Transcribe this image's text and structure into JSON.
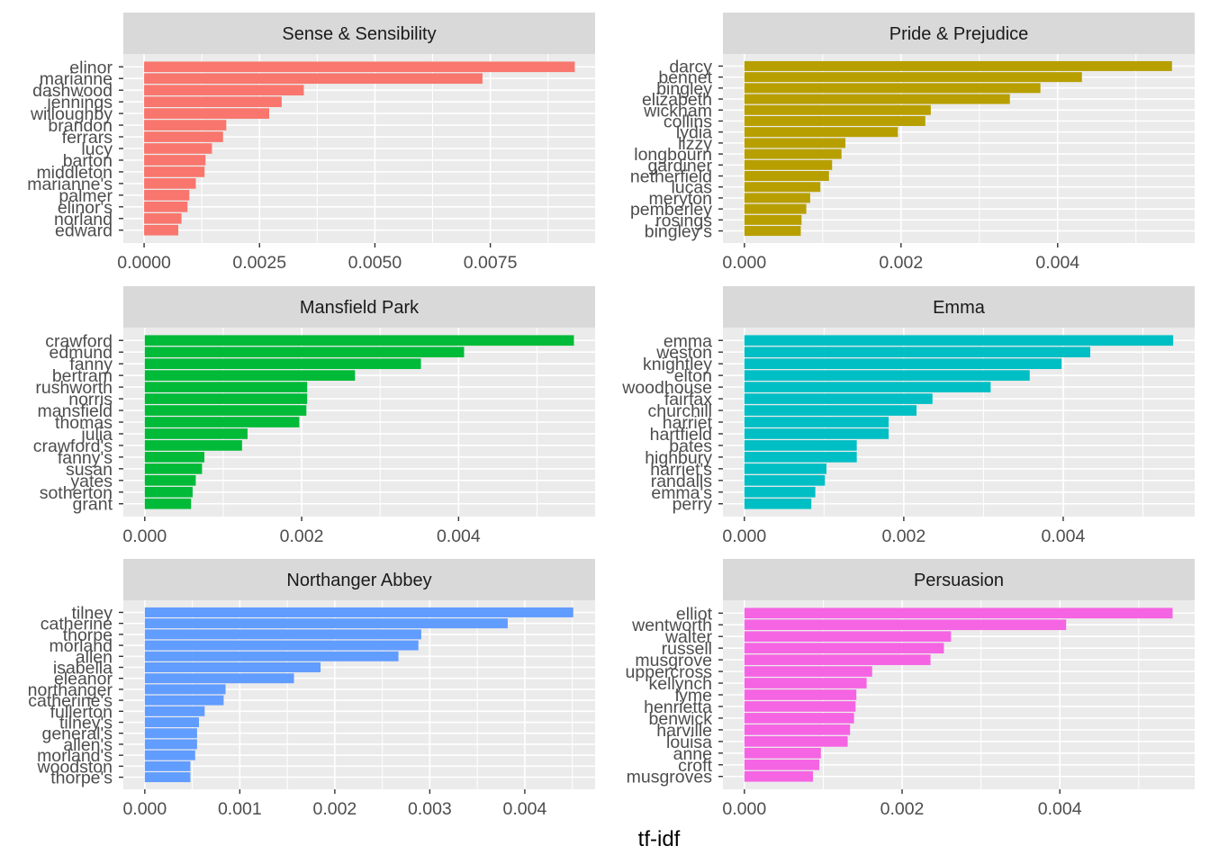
{
  "chart_data": {
    "type": "bar",
    "orientation": "horizontal",
    "layout": "facet grid 3 rows x 2 columns, free scales",
    "xlabel": "tf-idf",
    "ylabel": "",
    "grid": true,
    "legend": "none",
    "panels": [
      {
        "title": "Sense & Sensibility",
        "color": "#F8766D",
        "categories": [
          "elinor",
          "marianne",
          "dashwood",
          "jennings",
          "willoughby",
          "brandon",
          "ferrars",
          "lucy",
          "barton",
          "middleton",
          "marianne's",
          "palmer",
          "elinor's",
          "norland",
          "edward"
        ],
        "values": [
          0.00933,
          0.00733,
          0.00346,
          0.00298,
          0.00271,
          0.00178,
          0.00171,
          0.00147,
          0.00133,
          0.00131,
          0.00112,
          0.00098,
          0.00094,
          0.00081,
          0.00074
        ],
        "xlim": [
          -0.00045,
          0.00977
        ],
        "xticks": [
          0,
          0.0025,
          0.005,
          0.0075
        ],
        "xtick_labels": [
          "0.0000",
          "0.0025",
          "0.0050",
          "0.0075"
        ]
      },
      {
        "title": "Pride & Prejudice",
        "color": "#B79F00",
        "categories": [
          "darcy",
          "bennet",
          "bingley",
          "elizabeth",
          "wickham",
          "collins",
          "lydia",
          "lizzy",
          "longbourn",
          "gardiner",
          "netherfield",
          "lucas",
          "meryton",
          "pemberley",
          "rosings",
          "bingley's"
        ],
        "values": [
          0.00546,
          0.00431,
          0.00378,
          0.00339,
          0.00238,
          0.00231,
          0.00196,
          0.00129,
          0.00124,
          0.00112,
          0.00108,
          0.00097,
          0.00084,
          0.00079,
          0.00073,
          0.00072
        ],
        "xlim": [
          -0.000274,
          0.00575
        ],
        "xticks": [
          0,
          0.002,
          0.004
        ],
        "xtick_labels": [
          "0.000",
          "0.002",
          "0.004"
        ]
      },
      {
        "title": "Mansfield Park",
        "color": "#00BA38",
        "categories": [
          "crawford",
          "edmund",
          "fanny",
          "bertram",
          "rushworth",
          "norris",
          "mansfield",
          "thomas",
          "julia",
          "crawford's",
          "fanny's",
          "susan",
          "yates",
          "sotherton",
          "grant"
        ],
        "values": [
          0.00547,
          0.00407,
          0.00352,
          0.00268,
          0.00207,
          0.00207,
          0.00206,
          0.00197,
          0.00131,
          0.00124,
          0.00076,
          0.00073,
          0.00065,
          0.00061,
          0.00059
        ],
        "xlim": [
          -0.000273,
          0.00574
        ],
        "xticks": [
          0,
          0.002,
          0.004
        ],
        "xtick_labels": [
          "0.000",
          "0.002",
          "0.004"
        ]
      },
      {
        "title": "Emma",
        "color": "#00BFC4",
        "categories": [
          "emma",
          "weston",
          "knightley",
          "elton",
          "woodhouse",
          "fairfax",
          "churchill",
          "harriet",
          "hartfield",
          "bates",
          "highbury",
          "harriet's",
          "randalls",
          "emma's",
          "perry"
        ],
        "values": [
          0.00538,
          0.00434,
          0.00398,
          0.00358,
          0.00309,
          0.00236,
          0.00216,
          0.00181,
          0.00181,
          0.00141,
          0.00141,
          0.00103,
          0.00101,
          0.00089,
          0.00084
        ],
        "xlim": [
          -0.000269,
          0.00565
        ],
        "xticks": [
          0,
          0.002,
          0.004
        ],
        "xtick_labels": [
          "0.000",
          "0.002",
          "0.004"
        ]
      },
      {
        "title": "Northanger Abbey",
        "color": "#619CFF",
        "categories": [
          "tilney",
          "catherine",
          "thorpe",
          "morland",
          "allen",
          "isabella",
          "eleanor",
          "northanger",
          "catherine's",
          "fullerton",
          "tilney's",
          "general's",
          "allen's",
          "morland's",
          "woodston",
          "thorpe's"
        ],
        "values": [
          0.00451,
          0.00382,
          0.00291,
          0.00288,
          0.00267,
          0.00185,
          0.00157,
          0.00085,
          0.00083,
          0.00063,
          0.00057,
          0.00055,
          0.00055,
          0.00053,
          0.00048,
          0.00048
        ],
        "xlim": [
          -0.000226,
          0.00474
        ],
        "xticks": [
          0,
          0.001,
          0.002,
          0.003,
          0.004
        ],
        "xtick_labels": [
          "0.000",
          "0.001",
          "0.002",
          "0.003",
          "0.004"
        ]
      },
      {
        "title": "Persuasion",
        "color": "#F564E3",
        "categories": [
          "elliot",
          "wentworth",
          "walter",
          "russell",
          "musgrove",
          "uppercross",
          "kellynch",
          "lyme",
          "henrietta",
          "benwick",
          "harville",
          "louisa",
          "anne",
          "croft",
          "musgroves"
        ],
        "values": [
          0.00543,
          0.00408,
          0.00262,
          0.00253,
          0.00236,
          0.00162,
          0.00155,
          0.00142,
          0.00141,
          0.00139,
          0.00134,
          0.00131,
          0.00097,
          0.00095,
          0.00087
        ],
        "xlim": [
          -0.000272,
          0.00571
        ],
        "xticks": [
          0,
          0.002,
          0.004
        ],
        "xtick_labels": [
          "0.000",
          "0.002",
          "0.004"
        ]
      }
    ]
  }
}
